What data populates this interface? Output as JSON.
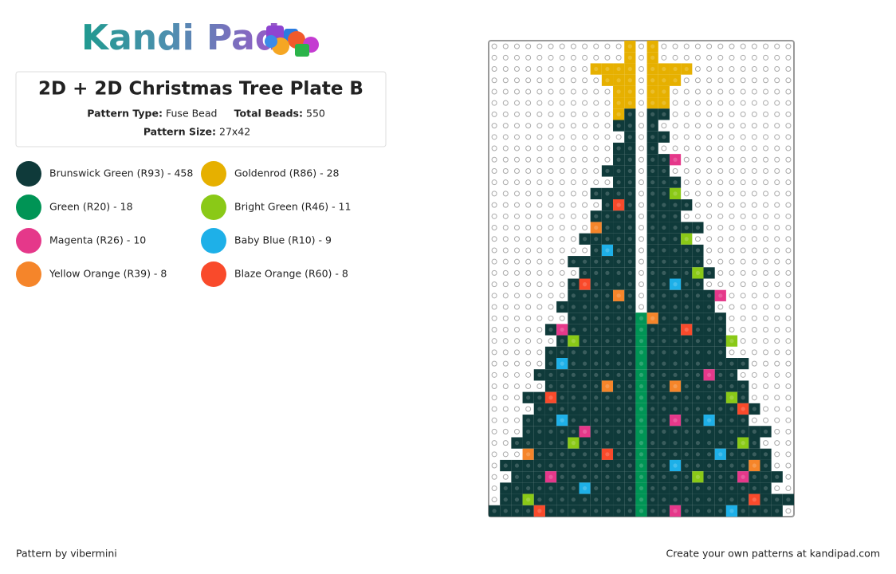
{
  "logo": "Kandi Pad",
  "header": {
    "title": "2D + 2D Christmas Tree Plate B",
    "pattern_type_label": "Pattern Type:",
    "pattern_type": "Fuse Bead",
    "total_beads_label": "Total Beads:",
    "total_beads": "550",
    "pattern_size_label": "Pattern Size:",
    "pattern_size": "27x42"
  },
  "legend": [
    "Brunswick Green (R93) - 458",
    "Goldenrod (R86) - 28",
    "Green (R20) - 18",
    "Bright Green (R46) - 11",
    "Magenta (R26) - 10",
    "Baby Blue (R10) - 9",
    "Yellow Orange (R39) - 8",
    "Blaze Orange (R60) - 8"
  ],
  "footer": {
    "credit": "Pattern by vibermini",
    "link": "Create your own patterns at kandipad.com"
  }
}
